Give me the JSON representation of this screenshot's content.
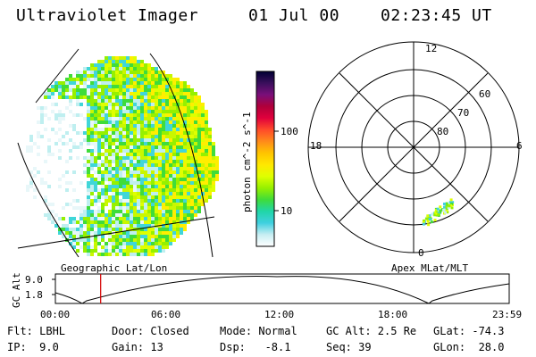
{
  "header": {
    "instrument": "Ultraviolet Imager",
    "date": "01 Jul 00",
    "time": "02:23:45 UT"
  },
  "colorbar": {
    "label": "photon cm^-2 s^-1",
    "ticks": [
      "100",
      "10"
    ],
    "scale": "log",
    "colors": [
      "#000033",
      "#3a0f5c",
      "#7a0f7a",
      "#b0003a",
      "#e0003c",
      "#ff4a2a",
      "#ff8a1a",
      "#ffc400",
      "#ffe800",
      "#dfff00",
      "#96f000",
      "#3fdc3a",
      "#20d6a8",
      "#40d0e0",
      "#c8eef2",
      "#ffffff"
    ]
  },
  "geo_panel": {
    "caption": "Geographic Lat/Lon"
  },
  "polar_panel": {
    "caption": "Apex MLat/MLT",
    "mlt_labels": {
      "top": "12",
      "right": "6",
      "bottom": "0",
      "left": "18"
    },
    "lat_labels": [
      "60",
      "70",
      "80"
    ]
  },
  "altitude_plot": {
    "ylabel": "GC Alt",
    "yticks": [
      "9.0",
      "1.8"
    ],
    "xticks": [
      "00:00",
      "06:00",
      "12:00",
      "18:00",
      "23:59"
    ],
    "marker_time": "02:23:45",
    "marker_color": "#d40000"
  },
  "status": {
    "row1": {
      "flt": "Flt: LBHL",
      "door": "Door: Closed",
      "mode": "Mode: Normal",
      "gcalt": "GC Alt: 2.5 Re",
      "glat": "GLat: -74.3"
    },
    "row2": {
      "ip": "IP:  9.0",
      "gain": "Gain: 13",
      "dsp": "Dsp:   -8.1",
      "seq": "Seq: 39",
      "glon": "GLon:  28.0"
    }
  }
}
